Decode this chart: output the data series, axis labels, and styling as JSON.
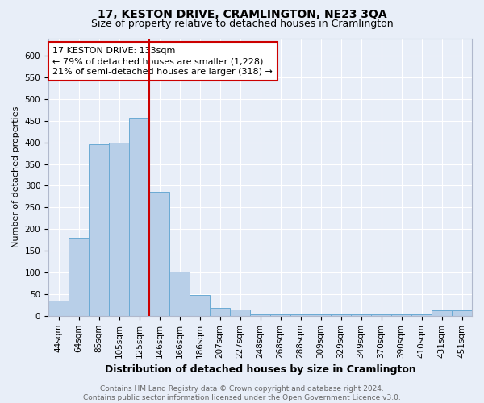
{
  "title": "17, KESTON DRIVE, CRAMLINGTON, NE23 3QA",
  "subtitle": "Size of property relative to detached houses in Cramlington",
  "xlabel": "Distribution of detached houses by size in Cramlington",
  "ylabel": "Number of detached properties",
  "bar_labels": [
    "44sqm",
    "64sqm",
    "85sqm",
    "105sqm",
    "125sqm",
    "146sqm",
    "166sqm",
    "186sqm",
    "207sqm",
    "227sqm",
    "248sqm",
    "268sqm",
    "288sqm",
    "309sqm",
    "329sqm",
    "349sqm",
    "370sqm",
    "390sqm",
    "410sqm",
    "431sqm",
    "451sqm"
  ],
  "bar_values": [
    35,
    180,
    395,
    400,
    455,
    285,
    102,
    48,
    18,
    15,
    3,
    3,
    3,
    3,
    3,
    3,
    3,
    3,
    3,
    13,
    12
  ],
  "bar_color": "#b8cfe8",
  "bar_edge_color": "#6aaad4",
  "background_color": "#e8eef8",
  "grid_color": "#ffffff",
  "annotation_text": "17 KESTON DRIVE: 133sqm\n← 79% of detached houses are smaller (1,228)\n21% of semi-detached houses are larger (318) →",
  "annotation_box_color": "#ffffff",
  "annotation_box_edge_color": "#cc0000",
  "vline_position": 4.5,
  "vline_color": "#cc0000",
  "ylim": [
    0,
    640
  ],
  "yticks": [
    0,
    50,
    100,
    150,
    200,
    250,
    300,
    350,
    400,
    450,
    500,
    550,
    600
  ],
  "footer_text": "Contains HM Land Registry data © Crown copyright and database right 2024.\nContains public sector information licensed under the Open Government Licence v3.0.",
  "title_fontsize": 10,
  "subtitle_fontsize": 9,
  "xlabel_fontsize": 9,
  "ylabel_fontsize": 8,
  "tick_fontsize": 7.5,
  "annotation_fontsize": 8,
  "footer_fontsize": 6.5
}
